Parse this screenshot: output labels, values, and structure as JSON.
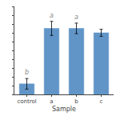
{
  "chart_data": {
    "type": "bar",
    "xlabel": "Sample",
    "categories": [
      "control",
      "a",
      "b",
      "c"
    ],
    "values": [
      0.12,
      0.75,
      0.75,
      0.7
    ],
    "errors": [
      0.06,
      0.08,
      0.06,
      0.04
    ],
    "labels": [
      "b",
      "a",
      "a",
      null
    ],
    "color": "#6195c8",
    "ylim": [
      0,
      1.0
    ],
    "yticks": [
      0,
      0.1,
      0.2,
      0.3,
      0.4,
      0.5,
      0.6,
      0.7,
      0.8,
      0.9,
      1.0
    ],
    "tick_labels": "x",
    "grid": false
  }
}
